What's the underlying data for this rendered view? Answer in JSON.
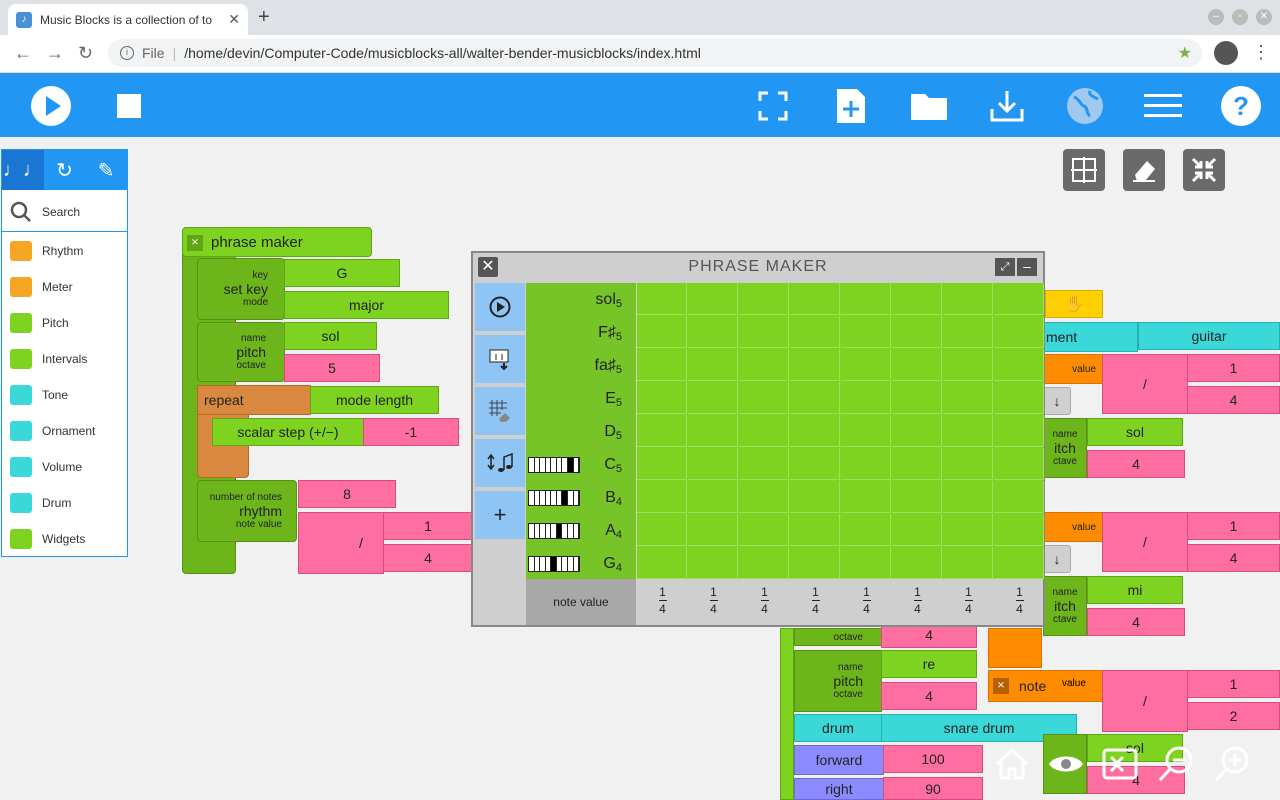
{
  "browser": {
    "tab_title": "Music Blocks is a collection of to",
    "tab_close": "✕",
    "new_tab": "+",
    "file_label": "File",
    "url": "/home/devin/Computer-Code/musicblocks-all/walter-bender-musicblocks/index.html"
  },
  "palette": {
    "search_placeholder": "Search",
    "items": [
      {
        "label": "Rhythm",
        "color": "#f5a623"
      },
      {
        "label": "Meter",
        "color": "#f5a623"
      },
      {
        "label": "Pitch",
        "color": "#7ed321"
      },
      {
        "label": "Intervals",
        "color": "#7ed321"
      },
      {
        "label": "Tone",
        "color": "#3ad8d8"
      },
      {
        "label": "Ornament",
        "color": "#3ad8d8"
      },
      {
        "label": "Volume",
        "color": "#3ad8d8"
      },
      {
        "label": "Drum",
        "color": "#3ad8d8"
      },
      {
        "label": "Widgets",
        "color": "#7ed321"
      }
    ]
  },
  "blocks": {
    "phrase_maker": "phrase maker",
    "key_label": "key",
    "set_key": "set key",
    "mode_label": "mode",
    "key_value": "G",
    "mode_value": "major",
    "name_label": "name",
    "pitch": "pitch",
    "octave_label": "octave",
    "pitch_name": "sol",
    "pitch_octave": "5",
    "repeat": "repeat",
    "mode_length": "mode length",
    "scalar_step": "scalar step (+/−)",
    "scalar_value": "-1",
    "number_of_notes": "number of notes",
    "rhythm": "rhythm",
    "note_value_label": "note value",
    "rhythm_count": "8",
    "div": "/",
    "rhythm_num": "1",
    "rhythm_den": "4",
    "instrument_partial": "ment",
    "instrument_value": "guitar",
    "value_label": "value",
    "r1_num": "1",
    "r1_den": "4",
    "r2_name": "sol",
    "r2_oct": "4",
    "r3_num": "1",
    "r3_den": "4",
    "r4_name": "mi",
    "r4_oct": "4",
    "name_partial": "name",
    "itch": "itch",
    "ctave": "ctave",
    "oct4": "4",
    "re": "re",
    "re_oct": "4",
    "note": "note",
    "r5_num": "1",
    "r5_den": "2",
    "drum": "drum",
    "snare": "snare drum",
    "forward": "forward",
    "fwd_value": "100",
    "right": "right",
    "right_value": "90",
    "sol_partial": "sol",
    "four_partial": "4",
    "arrow": "↓"
  },
  "phrase_maker": {
    "title": "PHRASE MAKER",
    "rows": [
      {
        "note": "sol",
        "octave": "5"
      },
      {
        "note": "F♯",
        "octave": "5"
      },
      {
        "note": "fa♯",
        "octave": "5"
      },
      {
        "note": "E",
        "octave": "5"
      },
      {
        "note": "D",
        "octave": "5"
      },
      {
        "note": "C",
        "octave": "5"
      },
      {
        "note": "B",
        "octave": "4"
      },
      {
        "note": "A",
        "octave": "4"
      },
      {
        "note": "G",
        "octave": "4"
      }
    ],
    "note_value_label": "note value",
    "note_values": [
      {
        "num": "1",
        "den": "4"
      },
      {
        "num": "1",
        "den": "4"
      },
      {
        "num": "1",
        "den": "4"
      },
      {
        "num": "1",
        "den": "4"
      },
      {
        "num": "1",
        "den": "4"
      },
      {
        "num": "1",
        "den": "4"
      },
      {
        "num": "1",
        "den": "4"
      },
      {
        "num": "1",
        "den": "4"
      }
    ],
    "side_add": "+"
  }
}
